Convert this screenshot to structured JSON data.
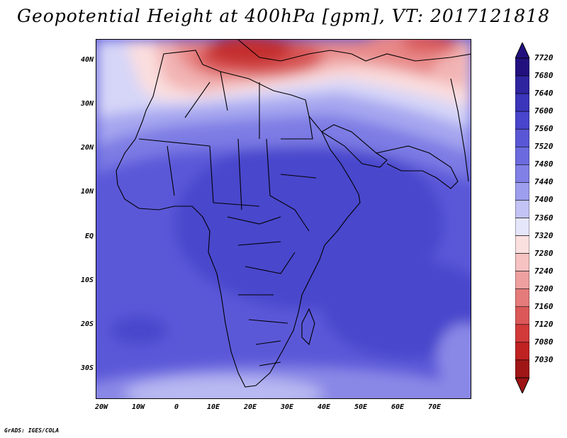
{
  "title": "Geopotential Height at 400hPa [gpm], VT: 2017121818",
  "credit": "GrADS: IGES/COLA",
  "map": {
    "region": "Africa",
    "latitude_labels": [
      "40N",
      "30N",
      "20N",
      "10N",
      "EQ",
      "10S",
      "20S",
      "30S"
    ],
    "longitude_labels": [
      "20W",
      "10W",
      "0",
      "10E",
      "20E",
      "30E",
      "40E",
      "50E",
      "60E",
      "70E"
    ],
    "lat_range": [
      -37,
      45
    ],
    "lon_range": [
      -22,
      80
    ],
    "field": "geopotential height 400hPa",
    "units": "gpm"
  },
  "colorbar": {
    "levels": [
      "7720",
      "7680",
      "7640",
      "7600",
      "7560",
      "7520",
      "7480",
      "7440",
      "7400",
      "7360",
      "7320",
      "7280",
      "7240",
      "7200",
      "7160",
      "7120",
      "7080",
      "7030"
    ],
    "colors": [
      "#23107f",
      "#2f24a0",
      "#3a35ba",
      "#4945cc",
      "#5a57d6",
      "#6b6bdf",
      "#8080e6",
      "#9e9eef",
      "#c3c3f5",
      "#e6e6fb",
      "#fbe0e0",
      "#f6c2c2",
      "#eea0a0",
      "#e57b7b",
      "#dc5858",
      "#d23a3a",
      "#c02222",
      "#a01616"
    ],
    "top_arrow_color": "#23107f",
    "bottom_arrow_color": "#9e1414"
  }
}
